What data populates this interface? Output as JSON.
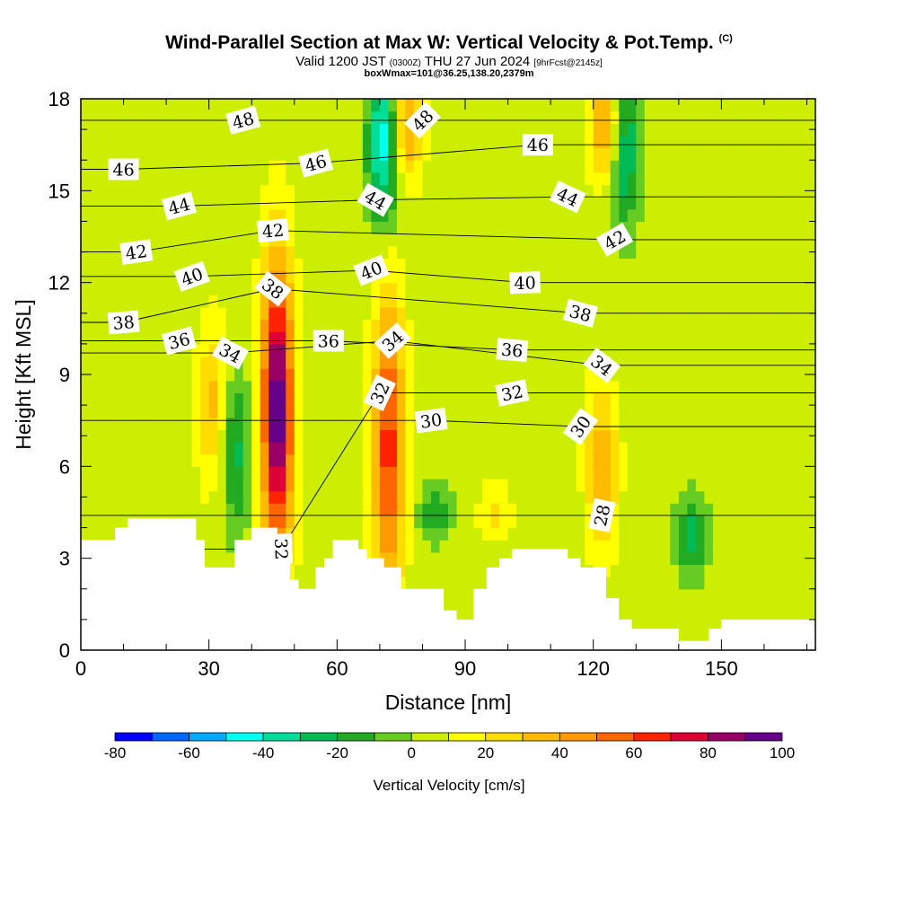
{
  "header": {
    "title": "Wind-Parallel Section at Max W: Vertical Velocity & Pot.Temp.",
    "copyright": "(C)",
    "valid_prefix": "Valid 1200 JST",
    "valid_utc": "(0300Z)",
    "valid_day": "THU 27 Jun 2024",
    "forecast": "[9hrFcst@2145z]",
    "box_info": "boxWmax=101@36.25,138.20,2379m"
  },
  "chart_data": {
    "type": "heatmap",
    "xlabel": "Distance [nm]",
    "ylabel": "Height [Kft MSL]",
    "xlim": [
      0,
      172
    ],
    "ylim": [
      0,
      18
    ],
    "x_ticks": [
      0,
      30,
      60,
      90,
      120,
      150
    ],
    "y_ticks": [
      0,
      3,
      6,
      9,
      12,
      15,
      18
    ],
    "colorbar": {
      "label": "Vertical Velocity [cm/s]",
      "tick_values": [
        -80,
        -60,
        -40,
        -20,
        0,
        20,
        40,
        60,
        80,
        100
      ],
      "levels": [
        -80,
        -70,
        -60,
        -50,
        -40,
        -30,
        -20,
        -10,
        0,
        10,
        20,
        30,
        40,
        50,
        60,
        70,
        80,
        90,
        100
      ],
      "colors": [
        "#0000ff",
        "#0066ff",
        "#00aaff",
        "#00ffee",
        "#00dd99",
        "#00bb55",
        "#22aa22",
        "#66cc22",
        "#ccee00",
        "#ffff00",
        "#ffdd00",
        "#ffbb00",
        "#ff9900",
        "#ff6600",
        "#ff2200",
        "#dd0033",
        "#990066",
        "#660088"
      ]
    },
    "background_value": 5,
    "updraft_cores": [
      {
        "x": 46,
        "ymin": 5.2,
        "ymax": 10.6,
        "w": 100
      },
      {
        "x": 72,
        "ymin": 3.8,
        "ymax": 9.6,
        "w": 65
      },
      {
        "x": 31,
        "ymin": 6.5,
        "ymax": 9.5,
        "w": 35
      },
      {
        "x": 122,
        "ymin": 4.5,
        "ymax": 7.5,
        "w": 40
      },
      {
        "x": 97,
        "ymin": 4.0,
        "ymax": 5.0,
        "w": 25
      },
      {
        "x": 76,
        "ymin": 16,
        "ymax": 18,
        "w": 45
      },
      {
        "x": 123,
        "ymin": 16,
        "ymax": 18,
        "w": 50
      }
    ],
    "downdraft_cores": [
      {
        "x": 36,
        "ymin": 5,
        "ymax": 8,
        "w": -25
      },
      {
        "x": 71,
        "ymin": 15,
        "ymax": 18,
        "w": -50
      },
      {
        "x": 83,
        "ymin": 4,
        "ymax": 5,
        "w": -20
      },
      {
        "x": 127,
        "ymin": 15,
        "ymax": 18,
        "w": -35
      },
      {
        "x": 143,
        "ymin": 3,
        "ymax": 4.5,
        "w": -25
      }
    ],
    "terrain_kft": [
      3.6,
      3.6,
      3.6,
      3.6,
      3.6,
      3.6,
      3.6,
      3.6,
      4.0,
      4.0,
      4.0,
      4.3,
      4.3,
      4.3,
      4.3,
      4.3,
      4.3,
      4.3,
      4.3,
      4.3,
      4.3,
      4.3,
      4.3,
      4.3,
      4.3,
      4.3,
      4.3,
      3.6,
      3.6,
      2.7,
      2.7,
      2.7,
      2.7,
      2.7,
      2.7,
      2.7,
      3.6,
      3.6,
      3.6,
      3.6,
      4.0,
      4.0,
      4.0,
      4.0,
      4.0,
      4.0,
      3.6,
      3.6,
      3.6,
      2.3,
      2.3,
      2.0,
      2.0,
      2.0,
      2.0,
      2.7,
      2.7,
      3.0,
      3.0,
      3.6,
      3.6,
      3.6,
      3.6,
      3.6,
      3.6,
      3.3,
      3.3,
      3.0,
      3.0,
      3.0,
      3.0,
      2.7,
      2.7,
      2.7,
      2.7,
      2.0,
      2.0,
      2.0,
      2.0,
      2.0,
      2.0,
      2.0,
      2.0,
      2.0,
      2.0,
      1.3,
      1.3,
      1.3,
      1.0,
      1.0,
      1.0,
      1.0,
      2.0,
      2.0,
      2.0,
      2.7,
      2.7,
      2.7,
      3.0,
      3.0,
      3.0,
      3.3,
      3.3,
      3.3,
      3.3,
      3.3,
      3.3,
      3.3,
      3.3,
      3.3,
      3.3,
      3.3,
      3.3,
      3.3,
      3.0,
      3.0,
      3.0,
      2.7,
      2.7,
      2.7,
      2.7,
      2.7,
      2.7,
      1.7,
      1.7,
      1.7,
      1.0,
      1.0,
      1.0,
      0.7,
      0.7,
      0.7,
      0.7,
      0.7,
      0.7,
      0.7,
      0.7,
      0.7,
      0.7,
      0.7,
      0.3,
      0.3,
      0.3,
      0.3,
      0.3,
      0.3,
      0.3,
      0.7,
      0.7,
      0.7,
      1.0,
      1.0,
      1.0,
      1.0,
      1.0,
      1.0,
      1.0,
      1.0,
      1.0,
      1.0,
      1.0,
      1.0,
      1.0,
      1.0,
      1.0,
      1.0,
      1.0,
      1.0,
      1.0,
      1.0,
      1.0,
      1.0,
      1.0,
      1.0,
      1.0
    ],
    "theta_contours": [
      {
        "label": "28",
        "x": 122,
        "y": 4.4,
        "angle": -78
      },
      {
        "label": "30",
        "x": 117,
        "y": 7.3,
        "angle": -55
      },
      {
        "label": "30",
        "x": 82,
        "y": 7.5,
        "angle": -8
      },
      {
        "label": "32",
        "x": 47,
        "y": 3.3,
        "angle": 88
      },
      {
        "label": "32",
        "x": 70,
        "y": 8.4,
        "angle": -65
      },
      {
        "label": "32",
        "x": 101,
        "y": 8.4,
        "angle": -12
      },
      {
        "label": "34",
        "x": 35,
        "y": 9.7,
        "angle": 28
      },
      {
        "label": "34",
        "x": 73,
        "y": 10.1,
        "angle": -42
      },
      {
        "label": "34",
        "x": 122,
        "y": 9.3,
        "angle": 38
      },
      {
        "label": "36",
        "x": 23,
        "y": 10.1,
        "angle": -15
      },
      {
        "label": "36",
        "x": 58,
        "y": 10.1,
        "angle": 0
      },
      {
        "label": "36",
        "x": 101,
        "y": 9.8,
        "angle": 5
      },
      {
        "label": "38",
        "x": 10,
        "y": 10.7,
        "angle": -5
      },
      {
        "label": "38",
        "x": 45,
        "y": 11.8,
        "angle": 38
      },
      {
        "label": "38",
        "x": 117,
        "y": 11.0,
        "angle": 15
      },
      {
        "label": "40",
        "x": 26,
        "y": 12.2,
        "angle": -20
      },
      {
        "label": "40",
        "x": 68,
        "y": 12.4,
        "angle": -22
      },
      {
        "label": "40",
        "x": 104,
        "y": 12.0,
        "angle": -2
      },
      {
        "label": "42",
        "x": 13,
        "y": 13.0,
        "angle": -8
      },
      {
        "label": "42",
        "x": 45,
        "y": 13.7,
        "angle": -5
      },
      {
        "label": "42",
        "x": 125,
        "y": 13.4,
        "angle": -30
      },
      {
        "label": "44",
        "x": 23,
        "y": 14.5,
        "angle": -15
      },
      {
        "label": "44",
        "x": 69,
        "y": 14.7,
        "angle": 30
      },
      {
        "label": "44",
        "x": 114,
        "y": 14.8,
        "angle": 25
      },
      {
        "label": "46",
        "x": 10,
        "y": 15.7,
        "angle": 0
      },
      {
        "label": "46",
        "x": 55,
        "y": 15.9,
        "angle": -15
      },
      {
        "label": "46",
        "x": 107,
        "y": 16.5,
        "angle": 0
      },
      {
        "label": "48",
        "x": 38,
        "y": 17.3,
        "angle": -15
      },
      {
        "label": "48",
        "x": 80,
        "y": 17.3,
        "angle": -45
      }
    ]
  }
}
